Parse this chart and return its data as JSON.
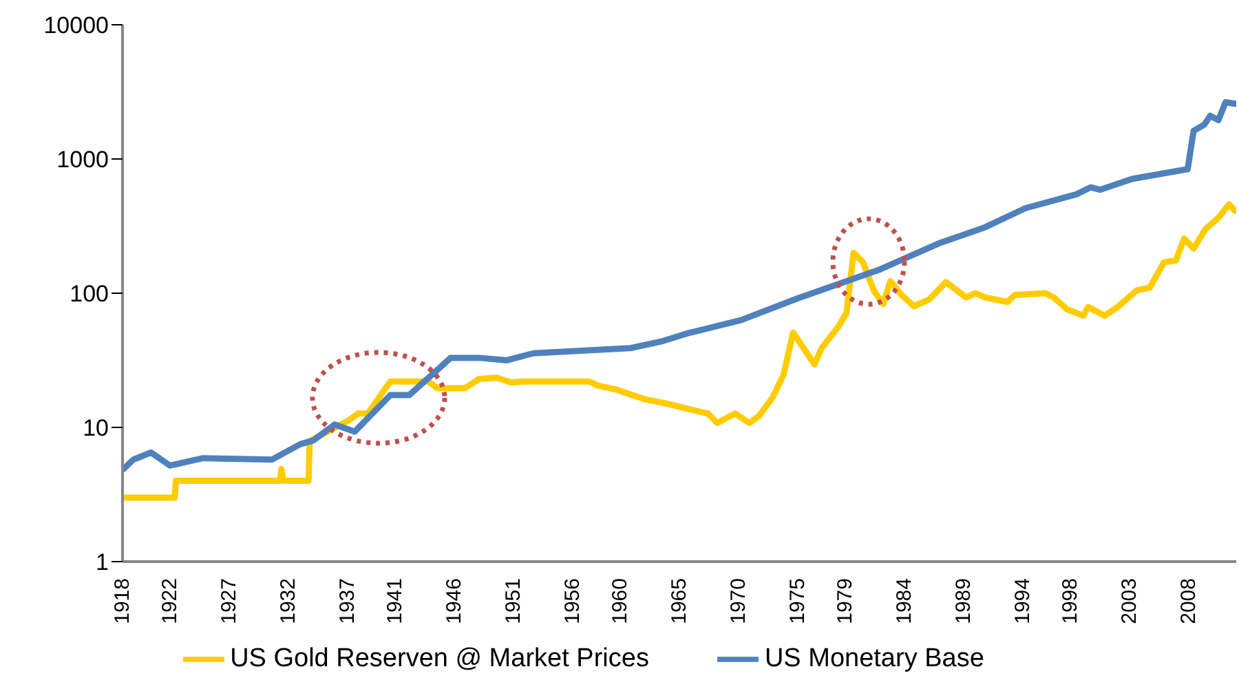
{
  "chart_data": {
    "type": "line",
    "log": "y",
    "xlim": [
      1918,
      2012
    ],
    "xticks": [
      1918,
      1922,
      1927,
      1932,
      1937,
      1941,
      1946,
      1951,
      1956,
      1960,
      1965,
      1970,
      1975,
      1979,
      1984,
      1989,
      1994,
      1998,
      2003,
      2008
    ],
    "ylim": [
      1,
      10000
    ],
    "yticks": [
      1,
      10,
      100,
      1000,
      10000
    ],
    "grid": false,
    "legend": "bottom",
    "marker": "none",
    "line_style": "solid",
    "series": [
      {
        "name": "US Gold Reserven @ Market Prices",
        "color": "#ffcc00",
        "x": [
          1918.1,
          1922.4,
          1922.5,
          1931.3,
          1931.4,
          1931.6,
          1933.7,
          1933.8,
          1937.1,
          1937.9,
          1938.7,
          1940.6,
          1943.8,
          1944.6,
          1946.9,
          1948.1,
          1949.6,
          1950.8,
          1951.9,
          1957.4,
          1958.1,
          1959.7,
          1962.1,
          1964,
          1965.9,
          1967.4,
          1968.2,
          1969.7,
          1970.9,
          1971.7,
          1972.9,
          1973.8,
          1974.6,
          1976.4,
          1977,
          1978.4,
          1979.1,
          1979.7,
          1980.5,
          1981.4,
          1982.2,
          1982.8,
          1983.7,
          1984.8,
          1986.1,
          1987.5,
          1989.2,
          1990,
          1990.8,
          1992.7,
          1993.3,
          1995.9,
          1996.6,
          1997.7,
          1999.1,
          1999.5,
          2000.9,
          2002,
          2003.6,
          2004.7,
          2005.9,
          2006.9,
          2007.6,
          2008.4,
          2009.4,
          2010.5,
          2011.4,
          2011.9
        ],
        "values": [
          3,
          3,
          4,
          4,
          4.9,
          4,
          4,
          7.9,
          11.3,
          12.7,
          12.7,
          22,
          22,
          19.6,
          19.6,
          23,
          23.5,
          21.6,
          22,
          22,
          20.5,
          19.1,
          16.2,
          15,
          13.6,
          12.7,
          10.8,
          12.7,
          10.8,
          12.1,
          16.9,
          24.8,
          51,
          29.5,
          39,
          56,
          71,
          200,
          170,
          105,
          83,
          123,
          98,
          80,
          90,
          121,
          93,
          100,
          93,
          86,
          97,
          100,
          93,
          76,
          68,
          79,
          68,
          79,
          105,
          110,
          170,
          175,
          255,
          215,
          300,
          365,
          460,
          410
        ]
      },
      {
        "name": "US Monetary Base",
        "color": "#4f81bd",
        "x": [
          1918.1,
          1918.9,
          1920.4,
          1922,
          1924.8,
          1930.6,
          1933,
          1934.1,
          1935.9,
          1937.6,
          1940.6,
          1942.2,
          1945.7,
          1948.1,
          1950.4,
          1952.7,
          1960.9,
          1963.6,
          1965.6,
          1970.2,
          1974.9,
          1981.9,
          1987,
          1990.8,
          1994.2,
          1998.5,
          1999.7,
          2000.5,
          2003.2,
          2007.9,
          2008.4,
          2009.3,
          2009.8,
          2010.5,
          2011.1,
          2011.9
        ],
        "values": [
          4.9,
          5.75,
          6.5,
          5.2,
          5.9,
          5.75,
          7.5,
          8,
          10.5,
          9.3,
          17.4,
          17.4,
          33,
          33,
          31.6,
          35.7,
          39,
          44,
          50,
          63,
          91,
          150,
          237,
          310,
          430,
          545,
          615,
          590,
          710,
          840,
          1620,
          1800,
          2100,
          1950,
          2650,
          2580
        ]
      }
    ]
  }
}
